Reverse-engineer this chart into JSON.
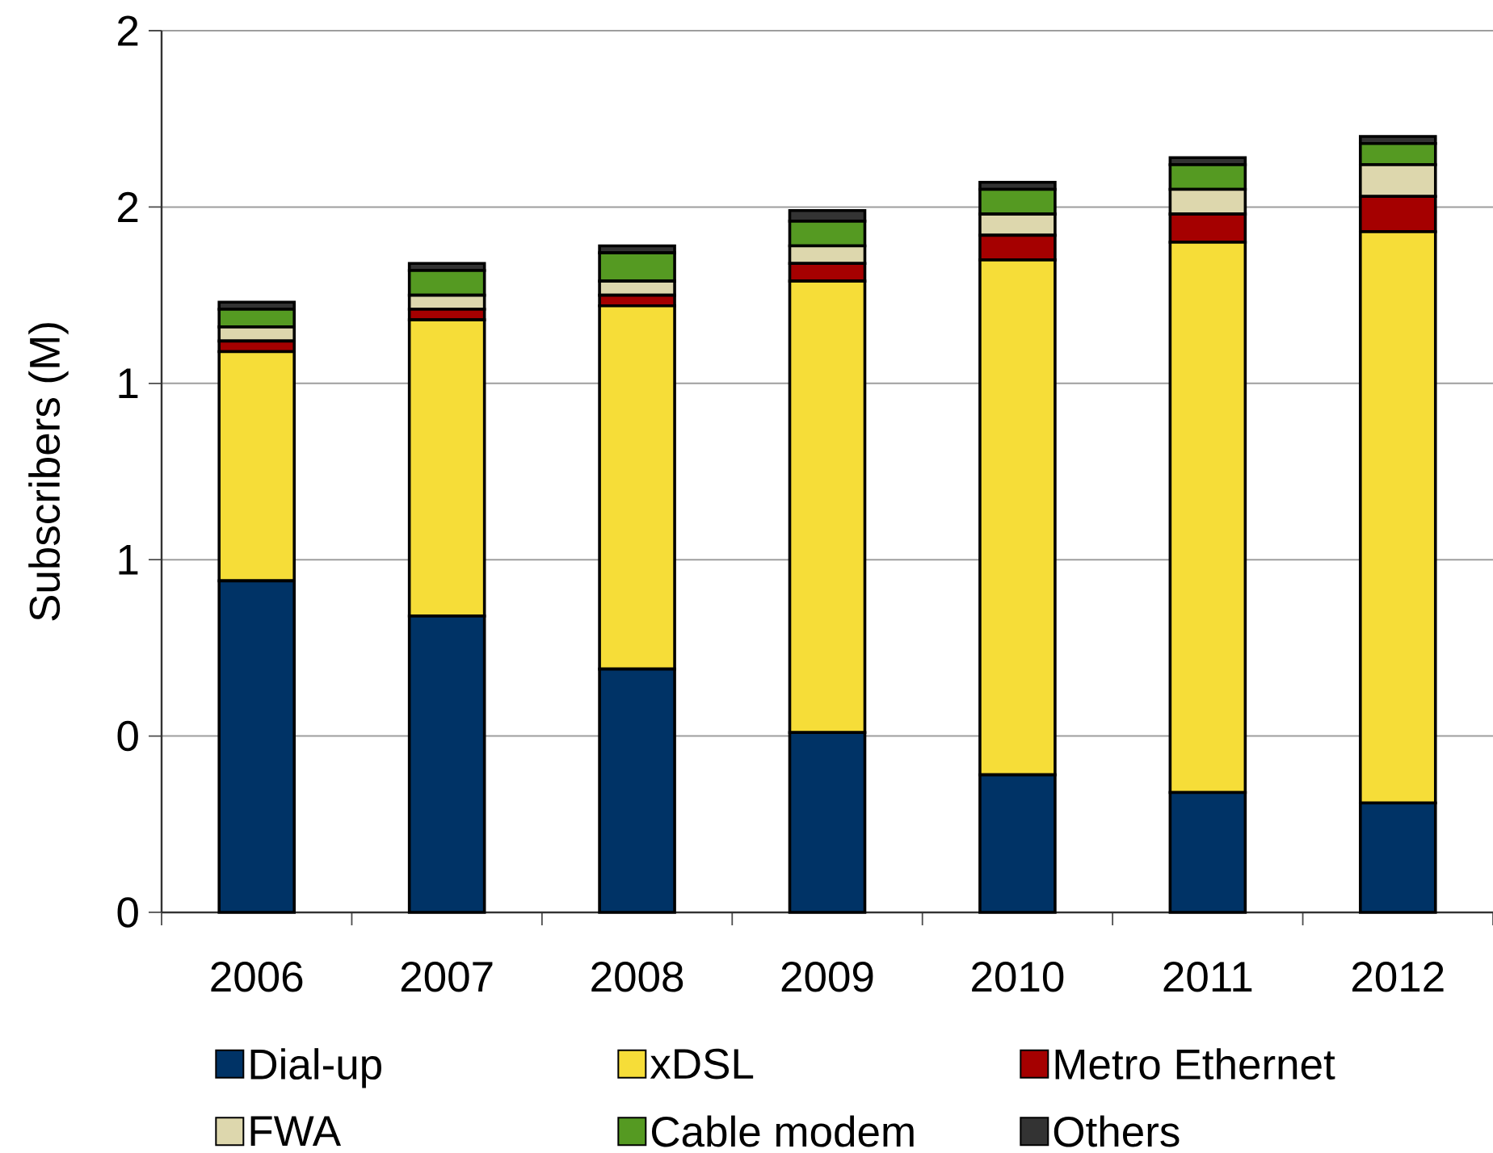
{
  "chart_data": {
    "type": "bar",
    "stacked": true,
    "ylabel": "Subscribers (M)",
    "categories": [
      "2006",
      "2007",
      "2008",
      "2009",
      "2010",
      "2011",
      "2012"
    ],
    "series": [
      {
        "name": "Dial-up",
        "color": "#003366",
        "values": [
          0.94,
          0.84,
          0.69,
          0.51,
          0.39,
          0.34,
          0.31
        ]
      },
      {
        "name": "xDSL",
        "color": "#f6dd38",
        "values": [
          0.65,
          0.84,
          1.03,
          1.28,
          1.46,
          1.56,
          1.62
        ]
      },
      {
        "name": "Metro Ethernet",
        "color": "#a50000",
        "values": [
          0.03,
          0.03,
          0.03,
          0.05,
          0.07,
          0.08,
          0.1
        ]
      },
      {
        "name": "FWA",
        "color": "#ddd7ad",
        "values": [
          0.04,
          0.04,
          0.04,
          0.05,
          0.06,
          0.07,
          0.09
        ]
      },
      {
        "name": "Cable modem",
        "color": "#559a22",
        "values": [
          0.05,
          0.07,
          0.08,
          0.07,
          0.07,
          0.07,
          0.06
        ]
      },
      {
        "name": "Others",
        "color": "#333333",
        "values": [
          0.02,
          0.02,
          0.02,
          0.03,
          0.02,
          0.02,
          0.02
        ]
      }
    ],
    "ylim": [
      0,
      2.5
    ],
    "yticks": [
      0,
      {
        "value": 0.5,
        "label": "0"
      },
      1,
      {
        "value": 1.5,
        "label": "1"
      },
      2,
      {
        "value": 2.5,
        "label": "2"
      }
    ],
    "grid": "y",
    "legend": "bottom"
  }
}
